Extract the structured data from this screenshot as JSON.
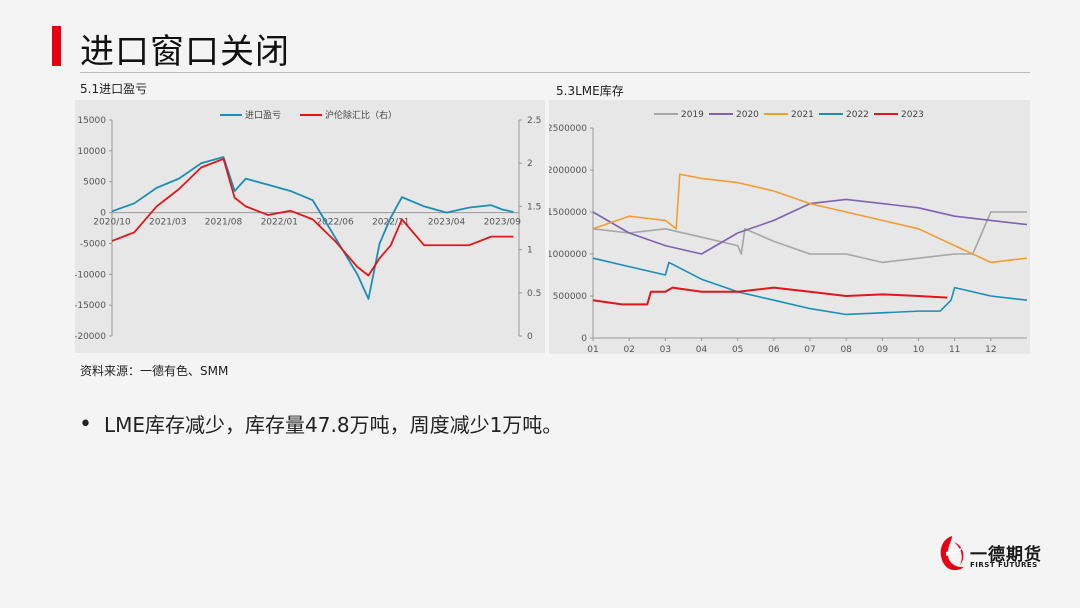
{
  "title": "进口窗口关闭",
  "brand_color": "#e60012",
  "left_chart_title": "5.1进口盈亏",
  "right_chart_title": "5.3LME库存",
  "source": "资料来源：一德有色、SMM",
  "bullet": "LME库存减少，库存量47.8万吨，周度减少1万吨。",
  "logo": {
    "name": "一德期货",
    "en": "FIRST FUTURES"
  },
  "chart_data": [
    {
      "type": "line",
      "legend": [
        "进口盈亏",
        "沪伦除汇比（右）"
      ],
      "legend_placement": "top",
      "colors": [
        "#1a8fb5",
        "#e0161a"
      ],
      "x_ticks": [
        "2020/10",
        "2021/03",
        "2021/08",
        "2022/01",
        "2022/06",
        "2022/11",
        "2023/04",
        "2023/09"
      ],
      "y_left_ticks": [
        "15000",
        "10000",
        "5000",
        "0",
        "-5000",
        "-10000",
        "-15000",
        "-20000"
      ],
      "y_right_ticks": [
        "2.5",
        "2",
        "1.5",
        "1",
        "0.5",
        "0"
      ],
      "ylim_left": [
        -20000,
        15000
      ],
      "ylim_right": [
        0,
        2.5
      ],
      "series": [
        {
          "name": "进口盈亏",
          "axis": "left",
          "x": [
            "2020/10",
            "2020/12",
            "2021/02",
            "2021/04",
            "2021/06",
            "2021/08",
            "2021/09",
            "2021/10",
            "2021/12",
            "2022/02",
            "2022/04",
            "2022/06",
            "2022/07",
            "2022/08",
            "2022/09",
            "2022/10",
            "2022/11",
            "2022/12",
            "2023/02",
            "2023/04",
            "2023/06",
            "2023/08",
            "2023/09",
            "2023/10"
          ],
          "values": [
            200,
            1500,
            4000,
            5500,
            8000,
            9000,
            3500,
            5500,
            4500,
            3500,
            2000,
            -4000,
            -7000,
            -10000,
            -14000,
            -5000,
            -800,
            2500,
            1000,
            0,
            800,
            1200,
            500,
            100
          ]
        },
        {
          "name": "沪伦除汇比（右）",
          "axis": "right",
          "x": [
            "2020/10",
            "2020/12",
            "2021/02",
            "2021/04",
            "2021/06",
            "2021/08",
            "2021/09",
            "2021/10",
            "2021/12",
            "2022/02",
            "2022/04",
            "2022/06",
            "2022/07",
            "2022/08",
            "2022/09",
            "2022/10",
            "2022/11",
            "2022/12",
            "2023/02",
            "2023/04",
            "2023/06",
            "2023/08",
            "2023/09",
            "2023/10"
          ],
          "values": [
            1.1,
            1.2,
            1.5,
            1.7,
            1.95,
            2.05,
            1.6,
            1.5,
            1.4,
            1.45,
            1.35,
            1.1,
            0.95,
            0.8,
            0.7,
            0.9,
            1.05,
            1.35,
            1.05,
            1.05,
            1.05,
            1.15,
            1.15,
            1.15
          ]
        }
      ]
    },
    {
      "type": "line",
      "legend": [
        "2019",
        "2020",
        "2021",
        "2022",
        "2023"
      ],
      "legend_placement": "top",
      "x_ticks": [
        "01",
        "02",
        "03",
        "04",
        "05",
        "06",
        "07",
        "08",
        "09",
        "10",
        "11",
        "12"
      ],
      "y_ticks": [
        "2500000",
        "2000000",
        "1500000",
        "1000000",
        "500000",
        "0"
      ],
      "ylim": [
        0,
        2500000
      ],
      "series": [
        {
          "name": "2019",
          "color": "#a6a6a6",
          "x": [
            1.0,
            2.0,
            3.0,
            4.0,
            5.0,
            5.1,
            5.2,
            6.0,
            7.0,
            8.0,
            9.0,
            10.0,
            11.0,
            11.5,
            12.0,
            13.0
          ],
          "values": [
            1300000,
            1250000,
            1300000,
            1200000,
            1100000,
            1000000,
            1300000,
            1150000,
            1000000,
            1000000,
            900000,
            950000,
            1000000,
            1000000,
            1500000,
            1500000
          ]
        },
        {
          "name": "2020",
          "color": "#7f63b2",
          "x": [
            1.0,
            2.0,
            3.0,
            4.0,
            5.0,
            6.0,
            7.0,
            8.0,
            9.0,
            10.0,
            11.0,
            12.0,
            13.0
          ],
          "values": [
            1500000,
            1250000,
            1100000,
            1000000,
            1250000,
            1400000,
            1600000,
            1650000,
            1600000,
            1550000,
            1450000,
            1400000,
            1350000
          ]
        },
        {
          "name": "2021",
          "color": "#f39c33",
          "x": [
            1.0,
            2.0,
            3.0,
            3.3,
            3.4,
            4.0,
            5.0,
            6.0,
            7.0,
            8.0,
            9.0,
            10.0,
            11.0,
            12.0,
            13.0
          ],
          "values": [
            1300000,
            1450000,
            1400000,
            1300000,
            1950000,
            1900000,
            1850000,
            1750000,
            1600000,
            1500000,
            1400000,
            1300000,
            1100000,
            900000,
            950000
          ]
        },
        {
          "name": "2022",
          "color": "#1a8fb5",
          "x": [
            1.0,
            2.0,
            3.0,
            3.1,
            4.0,
            5.0,
            6.0,
            7.0,
            8.0,
            9.0,
            10.0,
            10.6,
            10.9,
            11.0,
            12.0,
            13.0
          ],
          "values": [
            950000,
            850000,
            750000,
            900000,
            700000,
            550000,
            450000,
            350000,
            280000,
            300000,
            320000,
            320000,
            450000,
            600000,
            500000,
            450000
          ]
        },
        {
          "name": "2023",
          "color": "#e0161a",
          "x": [
            1.0,
            1.8,
            2.5,
            2.6,
            3.0,
            3.2,
            4.0,
            5.0,
            6.0,
            7.0,
            8.0,
            9.0,
            10.0,
            10.8
          ],
          "values": [
            450000,
            400000,
            400000,
            550000,
            550000,
            600000,
            550000,
            550000,
            600000,
            550000,
            500000,
            520000,
            500000,
            480000
          ]
        }
      ]
    }
  ]
}
